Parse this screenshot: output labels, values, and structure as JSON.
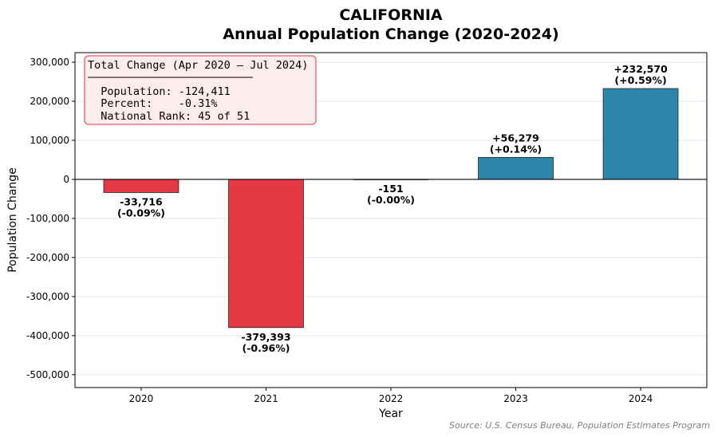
{
  "chart_data": {
    "type": "bar",
    "title": "CALIFORNIA",
    "subtitle": "Annual Population Change (2020-2024)",
    "xlabel": "Year",
    "ylabel": "Population Change",
    "categories": [
      "2020",
      "2021",
      "2022",
      "2023",
      "2024"
    ],
    "values": [
      -33716,
      -379393,
      -151,
      56279,
      232570
    ],
    "value_labels": [
      "-33,716",
      "-379,393",
      "-151",
      "+56,279",
      "+232,570"
    ],
    "percent_labels": [
      "(-0.09%)",
      "(-0.96%)",
      "(-0.00%)",
      "(+0.14%)",
      "(+0.59%)"
    ],
    "ylim": [
      -533000,
      324500
    ],
    "yticks": [
      300000,
      200000,
      100000,
      0,
      -100000,
      -200000,
      -300000,
      -400000,
      -500000
    ],
    "ytick_labels": [
      "300,000",
      "200,000",
      "100,000",
      "0",
      "-100,000",
      "-200,000",
      "-300,000",
      "-400,000",
      "-500,000"
    ],
    "grid": "horizontal",
    "colors": {
      "positive": "#2e86ab",
      "negative": "#e63946"
    },
    "annotation_box": {
      "heading": "Total Change (Apr 2020 – Jul 2024)",
      "lines": [
        "  Population: -124,411",
        "  Percent:    -0.31%",
        "  National Rank: 45 of 51"
      ],
      "background": "#fdecec",
      "border": "#e85a6a"
    },
    "source": "Source: U.S. Census Bureau, Population Estimates Program"
  }
}
